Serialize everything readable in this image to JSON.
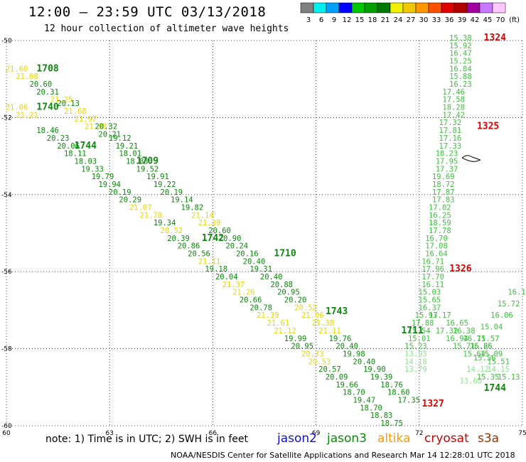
{
  "header": {
    "title": "12:00 – 23:59 UTC 03/13/2018",
    "subtitle": "12 hour collection of altimeter wave heights"
  },
  "color_scale": {
    "unit_label": "(ft)",
    "bins": [
      {
        "label": "3",
        "color": "#808080"
      },
      {
        "label": "6",
        "color": "#00f0f0"
      },
      {
        "label": "9",
        "color": "#00a0ff"
      },
      {
        "label": "12",
        "color": "#0000ff"
      },
      {
        "label": "15",
        "color": "#00c800"
      },
      {
        "label": "18",
        "color": "#00a000"
      },
      {
        "label": "21",
        "color": "#007800"
      },
      {
        "label": "24",
        "color": "#f0f000"
      },
      {
        "label": "27",
        "color": "#f0c800"
      },
      {
        "label": "30",
        "color": "#ff9600"
      },
      {
        "label": "33",
        "color": "#ff5000"
      },
      {
        "label": "36",
        "color": "#e00000"
      },
      {
        "label": "39",
        "color": "#b00000"
      },
      {
        "label": "42",
        "color": "#a000a0"
      },
      {
        "label": "45",
        "color": "#c878ff"
      },
      {
        "label": "70",
        "color": "#ffc8ff"
      }
    ]
  },
  "footer": {
    "note": "note: 1) Time is in UTC; 2) SWH is in feet",
    "legend": [
      {
        "name": "jason2",
        "color": "#1010d0"
      },
      {
        "name": "jason3",
        "color": "#0a8a0a"
      },
      {
        "name": "altika",
        "color": "#ff9900"
      },
      {
        "name": "cryosat",
        "color": "#cc0000"
      },
      {
        "name": "s3a",
        "color": "#993300"
      }
    ],
    "credit": "NOAA/NESDIS Center for Satellite Applications and Research   Mar 14 12:28:01 UTC 2018"
  },
  "chart_data": {
    "type": "scatter",
    "title": "12:00 – 23:59 UTC 03/13/2018",
    "xlim": [
      60,
      75
    ],
    "ylim": [
      -60,
      -50
    ],
    "x_ticks": [
      "60",
      "63",
      "66",
      "69",
      "72",
      "75"
    ],
    "y_ticks": [
      "-50",
      "-52",
      "-54",
      "-56",
      "-58",
      "-60"
    ],
    "grid": true,
    "track_labels": [
      {
        "text": "1708",
        "x": 61.2,
        "y": -50.8,
        "color": "#0a8a0a"
      },
      {
        "text": "1740",
        "x": 61.2,
        "y": -51.8,
        "color": "#0a8a0a"
      },
      {
        "text": "1744",
        "x": 62.3,
        "y": -52.8,
        "color": "#0a8a0a"
      },
      {
        "text": "1709",
        "x": 64.1,
        "y": -53.2,
        "color": "#0a8a0a"
      },
      {
        "text": "1742",
        "x": 66.0,
        "y": -55.2,
        "color": "#0a8a0a"
      },
      {
        "text": "1710",
        "x": 68.1,
        "y": -55.6,
        "color": "#0a8a0a"
      },
      {
        "text": "1743",
        "x": 69.6,
        "y": -57.1,
        "color": "#0a8a0a"
      },
      {
        "text": "1711",
        "x": 71.8,
        "y": -57.6,
        "color": "#0a8a0a"
      },
      {
        "text": "1744",
        "x": 74.2,
        "y": -59.1,
        "color": "#0a8a0a"
      },
      {
        "text": "1324",
        "x": 74.2,
        "y": -50.0,
        "color": "#dd0000"
      },
      {
        "text": "1325",
        "x": 74.0,
        "y": -52.3,
        "color": "#dd0000"
      },
      {
        "text": "1326",
        "x": 73.2,
        "y": -56.0,
        "color": "#dd0000"
      },
      {
        "text": "1327",
        "x": 72.4,
        "y": -59.5,
        "color": "#dd0000"
      }
    ],
    "points": [
      {
        "x": 60.3,
        "y": -50.8,
        "v": "21.60",
        "c": "#e8d800"
      },
      {
        "x": 60.6,
        "y": -51.0,
        "v": "21.08",
        "c": "#e8d800"
      },
      {
        "x": 61.0,
        "y": -51.2,
        "v": "20.60",
        "c": "#0a8a0a"
      },
      {
        "x": 61.2,
        "y": -51.4,
        "v": "20.31",
        "c": "#0a8a0a"
      },
      {
        "x": 61.6,
        "y": -51.6,
        "v": "21.25",
        "c": "#e8d800"
      },
      {
        "x": 61.8,
        "y": -51.7,
        "v": "20.13",
        "c": "#0a8a0a"
      },
      {
        "x": 60.3,
        "y": -51.8,
        "v": "21.06",
        "c": "#e8d800"
      },
      {
        "x": 62.0,
        "y": -51.9,
        "v": "21.68",
        "c": "#e8d800"
      },
      {
        "x": 60.6,
        "y": -52.0,
        "v": "21.21",
        "c": "#e8d800"
      },
      {
        "x": 62.3,
        "y": -52.1,
        "v": "21.97",
        "c": "#e8d800"
      },
      {
        "x": 62.6,
        "y": -52.3,
        "v": "21.88",
        "c": "#e8d800"
      },
      {
        "x": 61.2,
        "y": -52.4,
        "v": "18.46",
        "c": "#0a8a0a"
      },
      {
        "x": 62.9,
        "y": -52.3,
        "v": "20.32",
        "c": "#0a8a0a"
      },
      {
        "x": 61.5,
        "y": -52.6,
        "v": "20.23",
        "c": "#0a8a0a"
      },
      {
        "x": 63.0,
        "y": -52.5,
        "v": "20.21",
        "c": "#0a8a0a"
      },
      {
        "x": 61.8,
        "y": -52.8,
        "v": "20.06",
        "c": "#0a8a0a"
      },
      {
        "x": 63.3,
        "y": -52.6,
        "v": "19.12",
        "c": "#0a8a0a"
      },
      {
        "x": 63.5,
        "y": -52.8,
        "v": "19.21",
        "c": "#0a8a0a"
      },
      {
        "x": 62.0,
        "y": -53.0,
        "v": "18.11",
        "c": "#0a8a0a"
      },
      {
        "x": 63.6,
        "y": -53.0,
        "v": "18.01",
        "c": "#0a8a0a"
      },
      {
        "x": 62.3,
        "y": -53.2,
        "v": "18.03",
        "c": "#0a8a0a"
      },
      {
        "x": 63.8,
        "y": -53.2,
        "v": "18.83",
        "c": "#0a8a0a"
      },
      {
        "x": 62.5,
        "y": -53.4,
        "v": "19.33",
        "c": "#0a8a0a"
      },
      {
        "x": 64.1,
        "y": -53.4,
        "v": "19.52",
        "c": "#0a8a0a"
      },
      {
        "x": 62.8,
        "y": -53.6,
        "v": "19.79",
        "c": "#0a8a0a"
      },
      {
        "x": 64.4,
        "y": -53.6,
        "v": "19.91",
        "c": "#0a8a0a"
      },
      {
        "x": 63.0,
        "y": -53.8,
        "v": "19.94",
        "c": "#0a8a0a"
      },
      {
        "x": 64.6,
        "y": -53.8,
        "v": "19.22",
        "c": "#0a8a0a"
      },
      {
        "x": 63.3,
        "y": -54.0,
        "v": "20.19",
        "c": "#0a8a0a"
      },
      {
        "x": 64.8,
        "y": -54.0,
        "v": "20.19",
        "c": "#0a8a0a"
      },
      {
        "x": 63.6,
        "y": -54.2,
        "v": "20.29",
        "c": "#0a8a0a"
      },
      {
        "x": 65.1,
        "y": -54.2,
        "v": "19.14",
        "c": "#0a8a0a"
      },
      {
        "x": 63.9,
        "y": -54.4,
        "v": "21.07",
        "c": "#e8d800"
      },
      {
        "x": 65.4,
        "y": -54.4,
        "v": "19.82",
        "c": "#0a8a0a"
      },
      {
        "x": 64.2,
        "y": -54.6,
        "v": "21.70",
        "c": "#e8d800"
      },
      {
        "x": 65.7,
        "y": -54.6,
        "v": "21.14",
        "c": "#e8d800"
      },
      {
        "x": 64.6,
        "y": -54.8,
        "v": "19.34",
        "c": "#0a8a0a"
      },
      {
        "x": 65.9,
        "y": -54.8,
        "v": "21.39",
        "c": "#e8d800"
      },
      {
        "x": 64.8,
        "y": -55.0,
        "v": "20.52",
        "c": "#e8d800"
      },
      {
        "x": 66.2,
        "y": -55.0,
        "v": "20.60",
        "c": "#0a8a0a"
      },
      {
        "x": 65.0,
        "y": -55.2,
        "v": "20.39",
        "c": "#0a8a0a"
      },
      {
        "x": 66.5,
        "y": -55.2,
        "v": "20.90",
        "c": "#0a8a0a"
      },
      {
        "x": 65.3,
        "y": -55.4,
        "v": "20.86",
        "c": "#0a8a0a"
      },
      {
        "x": 66.7,
        "y": -55.4,
        "v": "20.24",
        "c": "#0a8a0a"
      },
      {
        "x": 65.6,
        "y": -55.6,
        "v": "20.56",
        "c": "#0a8a0a"
      },
      {
        "x": 67.0,
        "y": -55.6,
        "v": "20.16",
        "c": "#0a8a0a"
      },
      {
        "x": 65.9,
        "y": -55.8,
        "v": "21.11",
        "c": "#e8d800"
      },
      {
        "x": 67.2,
        "y": -55.8,
        "v": "20.40",
        "c": "#0a8a0a"
      },
      {
        "x": 66.1,
        "y": -56.0,
        "v": "19.18",
        "c": "#0a8a0a"
      },
      {
        "x": 67.4,
        "y": -56.0,
        "v": "19.31",
        "c": "#0a8a0a"
      },
      {
        "x": 66.4,
        "y": -56.2,
        "v": "20.04",
        "c": "#0a8a0a"
      },
      {
        "x": 67.7,
        "y": -56.2,
        "v": "20.40",
        "c": "#0a8a0a"
      },
      {
        "x": 66.6,
        "y": -56.4,
        "v": "21.37",
        "c": "#e8d800"
      },
      {
        "x": 68.0,
        "y": -56.4,
        "v": "20.88",
        "c": "#0a8a0a"
      },
      {
        "x": 66.9,
        "y": -56.6,
        "v": "21.26",
        "c": "#e8d800"
      },
      {
        "x": 68.2,
        "y": -56.6,
        "v": "20.95",
        "c": "#0a8a0a"
      },
      {
        "x": 67.1,
        "y": -56.8,
        "v": "20.66",
        "c": "#0a8a0a"
      },
      {
        "x": 68.4,
        "y": -56.8,
        "v": "20.20",
        "c": "#0a8a0a"
      },
      {
        "x": 67.4,
        "y": -57.0,
        "v": "20.78",
        "c": "#0a8a0a"
      },
      {
        "x": 68.7,
        "y": -57.0,
        "v": "20.52",
        "c": "#e8d800"
      },
      {
        "x": 67.6,
        "y": -57.2,
        "v": "21.39",
        "c": "#e8d800"
      },
      {
        "x": 68.9,
        "y": -57.2,
        "v": "21.06",
        "c": "#e8d800"
      },
      {
        "x": 67.9,
        "y": -57.4,
        "v": "21.61",
        "c": "#e8d800"
      },
      {
        "x": 69.2,
        "y": -57.4,
        "v": "21.38",
        "c": "#e8d800"
      },
      {
        "x": 68.1,
        "y": -57.6,
        "v": "21.12",
        "c": "#e8d800"
      },
      {
        "x": 69.4,
        "y": -57.6,
        "v": "21.11",
        "c": "#e8d800"
      },
      {
        "x": 68.4,
        "y": -57.8,
        "v": "19.99",
        "c": "#0a8a0a"
      },
      {
        "x": 69.7,
        "y": -57.8,
        "v": "19.76",
        "c": "#0a8a0a"
      },
      {
        "x": 68.6,
        "y": -58.0,
        "v": "20.95",
        "c": "#0a8a0a"
      },
      {
        "x": 69.9,
        "y": -58.0,
        "v": "20.40",
        "c": "#0a8a0a"
      },
      {
        "x": 68.9,
        "y": -58.2,
        "v": "20.73",
        "c": "#e8d800"
      },
      {
        "x": 70.1,
        "y": -58.2,
        "v": "19.98",
        "c": "#0a8a0a"
      },
      {
        "x": 69.1,
        "y": -58.4,
        "v": "20.53",
        "c": "#e8d800"
      },
      {
        "x": 70.4,
        "y": -58.4,
        "v": "20.40",
        "c": "#0a8a0a"
      },
      {
        "x": 69.4,
        "y": -58.6,
        "v": "20.57",
        "c": "#0a8a0a"
      },
      {
        "x": 70.7,
        "y": -58.6,
        "v": "19.90",
        "c": "#0a8a0a"
      },
      {
        "x": 69.6,
        "y": -58.8,
        "v": "20.09",
        "c": "#0a8a0a"
      },
      {
        "x": 70.9,
        "y": -58.8,
        "v": "19.39",
        "c": "#0a8a0a"
      },
      {
        "x": 69.9,
        "y": -59.0,
        "v": "19.66",
        "c": "#0a8a0a"
      },
      {
        "x": 71.2,
        "y": -59.0,
        "v": "18.76",
        "c": "#0a8a0a"
      },
      {
        "x": 70.1,
        "y": -59.2,
        "v": "18.70",
        "c": "#0a8a0a"
      },
      {
        "x": 71.4,
        "y": -59.2,
        "v": "18.60",
        "c": "#0a8a0a"
      },
      {
        "x": 70.4,
        "y": -59.4,
        "v": "19.47",
        "c": "#0a8a0a"
      },
      {
        "x": 71.7,
        "y": -59.4,
        "v": "17.35",
        "c": "#0a8a0a"
      },
      {
        "x": 70.6,
        "y": -59.6,
        "v": "18.70",
        "c": "#0a8a0a"
      },
      {
        "x": 70.9,
        "y": -59.8,
        "v": "18.83",
        "c": "#0a8a0a"
      },
      {
        "x": 71.2,
        "y": -60.0,
        "v": "18.75",
        "c": "#0a8a0a"
      }
    ],
    "column_cryosat": [
      {
        "x": 73.2,
        "y": -50.0,
        "v": "15.38",
        "c": "#40c040"
      },
      {
        "x": 73.2,
        "y": -50.2,
        "v": "15.92",
        "c": "#40c040"
      },
      {
        "x": 73.2,
        "y": -50.4,
        "v": "16.47",
        "c": "#40c040"
      },
      {
        "x": 73.2,
        "y": -50.6,
        "v": "15.25",
        "c": "#40c040"
      },
      {
        "x": 73.2,
        "y": -50.8,
        "v": "16.84",
        "c": "#40c040"
      },
      {
        "x": 73.2,
        "y": -51.0,
        "v": "15.88",
        "c": "#40c040"
      },
      {
        "x": 73.2,
        "y": -51.2,
        "v": "16.23",
        "c": "#40c040"
      },
      {
        "x": 73.0,
        "y": -51.4,
        "v": "17.46",
        "c": "#40c040"
      },
      {
        "x": 73.0,
        "y": -51.6,
        "v": "17.58",
        "c": "#40c040"
      },
      {
        "x": 73.0,
        "y": -51.8,
        "v": "18.28",
        "c": "#40c040"
      },
      {
        "x": 73.0,
        "y": -52.0,
        "v": "17.42",
        "c": "#40c040"
      },
      {
        "x": 72.9,
        "y": -52.2,
        "v": "17.32",
        "c": "#40c040"
      },
      {
        "x": 72.9,
        "y": -52.4,
        "v": "17.81",
        "c": "#40c040"
      },
      {
        "x": 72.9,
        "y": -52.6,
        "v": "17.16",
        "c": "#40c040"
      },
      {
        "x": 72.9,
        "y": -52.8,
        "v": "17.33",
        "c": "#40c040"
      },
      {
        "x": 72.8,
        "y": -53.0,
        "v": "18.23",
        "c": "#40c040"
      },
      {
        "x": 72.8,
        "y": -53.2,
        "v": "17.95",
        "c": "#40c040"
      },
      {
        "x": 72.8,
        "y": -53.4,
        "v": "17.37",
        "c": "#40c040"
      },
      {
        "x": 72.7,
        "y": -53.6,
        "v": "19.69",
        "c": "#40c040"
      },
      {
        "x": 72.7,
        "y": -53.8,
        "v": "18.72",
        "c": "#40c040"
      },
      {
        "x": 72.7,
        "y": -54.0,
        "v": "17.87",
        "c": "#40c040"
      },
      {
        "x": 72.7,
        "y": -54.2,
        "v": "17.83",
        "c": "#40c040"
      },
      {
        "x": 72.6,
        "y": -54.4,
        "v": "17.02",
        "c": "#40c040"
      },
      {
        "x": 72.6,
        "y": -54.6,
        "v": "16.25",
        "c": "#40c040"
      },
      {
        "x": 72.6,
        "y": -54.8,
        "v": "18.59",
        "c": "#40c040"
      },
      {
        "x": 72.6,
        "y": -55.0,
        "v": "17.78",
        "c": "#40c040"
      },
      {
        "x": 72.5,
        "y": -55.2,
        "v": "16.70",
        "c": "#40c040"
      },
      {
        "x": 72.5,
        "y": -55.4,
        "v": "17.08",
        "c": "#40c040"
      },
      {
        "x": 72.5,
        "y": -55.6,
        "v": "16.64",
        "c": "#40c040"
      },
      {
        "x": 72.4,
        "y": -55.8,
        "v": "16.71",
        "c": "#40c040"
      },
      {
        "x": 72.4,
        "y": -56.0,
        "v": "17.96",
        "c": "#40c040"
      },
      {
        "x": 72.4,
        "y": -56.2,
        "v": "17.70",
        "c": "#40c040"
      },
      {
        "x": 72.4,
        "y": -56.4,
        "v": "16.11",
        "c": "#40c040"
      },
      {
        "x": 72.3,
        "y": -56.6,
        "v": "15.03",
        "c": "#40c040"
      },
      {
        "x": 72.3,
        "y": -56.8,
        "v": "15.65",
        "c": "#40c040"
      },
      {
        "x": 72.3,
        "y": -57.0,
        "v": "16.37",
        "c": "#40c040"
      }
    ],
    "column_lower": [
      {
        "x": 72.2,
        "y": -57.2,
        "v": "15.93",
        "c": "#40c040"
      },
      {
        "x": 72.1,
        "y": -57.4,
        "v": "17.88",
        "c": "#40c040"
      },
      {
        "x": 72.0,
        "y": -57.6,
        "v": "15.54",
        "c": "#40c040"
      },
      {
        "x": 72.0,
        "y": -57.8,
        "v": "15.01",
        "c": "#40c040"
      },
      {
        "x": 71.9,
        "y": -58.0,
        "v": "15.23",
        "c": "#40c040"
      },
      {
        "x": 71.9,
        "y": -58.2,
        "v": "13.93",
        "c": "#90e090"
      },
      {
        "x": 71.9,
        "y": -58.4,
        "v": "14.18",
        "c": "#90e090"
      },
      {
        "x": 71.9,
        "y": -58.6,
        "v": "13.79",
        "c": "#90e090"
      }
    ],
    "track_se": [
      {
        "x": 72.6,
        "y": -57.2,
        "v": "17.17",
        "c": "#40c040"
      },
      {
        "x": 73.1,
        "y": -57.4,
        "v": "16.65",
        "c": "#40c040"
      },
      {
        "x": 72.8,
        "y": -57.6,
        "v": "17.32",
        "c": "#40c040"
      },
      {
        "x": 73.3,
        "y": -57.6,
        "v": "16.38",
        "c": "#40c040"
      },
      {
        "x": 73.1,
        "y": -57.8,
        "v": "16.94",
        "c": "#40c040"
      },
      {
        "x": 73.6,
        "y": -57.8,
        "v": "16.71",
        "c": "#40c040"
      },
      {
        "x": 73.3,
        "y": -58.0,
        "v": "15.71",
        "c": "#40c040"
      },
      {
        "x": 73.8,
        "y": -58.0,
        "v": "16.66",
        "c": "#40c040"
      },
      {
        "x": 73.6,
        "y": -58.2,
        "v": "15.64",
        "c": "#40c040"
      },
      {
        "x": 74.1,
        "y": -58.2,
        "v": "15.09",
        "c": "#40c040"
      },
      {
        "x": 74.3,
        "y": -58.4,
        "v": "15.51",
        "c": "#40c040"
      },
      {
        "x": 73.7,
        "y": -58.6,
        "v": "14.12",
        "c": "#90e090"
      },
      {
        "x": 73.5,
        "y": -58.9,
        "v": "13.60",
        "c": "#90e090"
      },
      {
        "x": 74.3,
        "y": -58.6,
        "v": "14.15",
        "c": "#90e090"
      },
      {
        "x": 74.6,
        "y": -58.8,
        "v": "15.13",
        "c": "#40c040"
      },
      {
        "x": 74.9,
        "y": -56.6,
        "v": "16.14",
        "c": "#40c040"
      },
      {
        "x": 74.6,
        "y": -56.9,
        "v": "15.72",
        "c": "#40c040"
      },
      {
        "x": 74.4,
        "y": -57.2,
        "v": "16.06",
        "c": "#40c040"
      },
      {
        "x": 74.1,
        "y": -57.5,
        "v": "15.04",
        "c": "#40c040"
      },
      {
        "x": 74.0,
        "y": -57.8,
        "v": "15.57",
        "c": "#40c040"
      },
      {
        "x": 73.8,
        "y": -58.0,
        "v": "15.25",
        "c": "#40c040"
      },
      {
        "x": 73.9,
        "y": -58.3,
        "v": "15.56",
        "c": "#40c040"
      },
      {
        "x": 74.0,
        "y": -58.8,
        "v": "15.35",
        "c": "#40c040"
      }
    ]
  }
}
